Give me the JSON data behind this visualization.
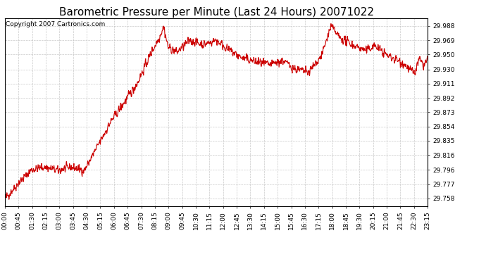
{
  "title": "Barometric Pressure per Minute (Last 24 Hours) 20071022",
  "copyright_text": "Copyright 2007 Cartronics.com",
  "line_color": "#cc0000",
  "background_color": "#ffffff",
  "plot_bg_color": "#ffffff",
  "grid_color": "#bbbbbb",
  "yticks": [
    29.758,
    29.777,
    29.796,
    29.816,
    29.835,
    29.854,
    29.873,
    29.892,
    29.911,
    29.93,
    29.95,
    29.969,
    29.988
  ],
  "ylim": [
    29.748,
    29.998
  ],
  "xtick_labels": [
    "00:00",
    "00:45",
    "01:30",
    "02:15",
    "03:00",
    "03:45",
    "04:30",
    "05:15",
    "06:00",
    "06:45",
    "07:30",
    "08:15",
    "09:00",
    "09:45",
    "10:30",
    "11:15",
    "12:00",
    "12:45",
    "13:30",
    "14:15",
    "15:00",
    "15:45",
    "16:30",
    "17:15",
    "18:00",
    "18:45",
    "19:30",
    "20:15",
    "21:00",
    "21:45",
    "22:30",
    "23:15"
  ],
  "title_fontsize": 11,
  "tick_fontsize": 6.5,
  "copyright_fontsize": 6.5,
  "line_width": 0.8,
  "num_points": 1440
}
